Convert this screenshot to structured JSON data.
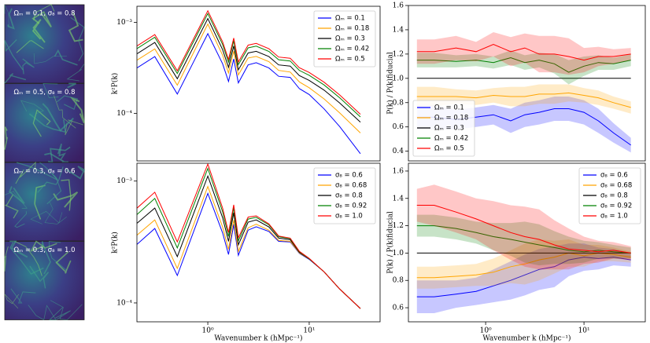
{
  "images": [
    {
      "label": "Ωₘ = 0.1, σ₈ = 0.8"
    },
    {
      "label": "Ωₘ = 0.5, σ₈ = 0.8"
    },
    {
      "label": "Ωₘ = 0.3, σ₈ = 0.6"
    },
    {
      "label": "Ωₘ = 0.3, σ₈ = 1.0"
    }
  ],
  "chart_data": [
    {
      "type": "line",
      "ylabel": "k²P(k)",
      "xscale": "log",
      "yscale": "log",
      "legend": "upper right",
      "xlim": [
        0.2,
        50
      ],
      "ylim": [
        3e-05,
        0.0015
      ],
      "yticks": [
        {
          "value": 0.001,
          "label": "10⁻³"
        },
        {
          "value": 0.0001,
          "label": "10⁻⁴"
        }
      ],
      "x": [
        0.2,
        0.3,
        0.5,
        1.0,
        1.4,
        1.6,
        1.8,
        2.0,
        2.5,
        3.0,
        4.0,
        5.0,
        6.5,
        8.0,
        10,
        14,
        20,
        32
      ],
      "series": [
        {
          "name": "Ωₘ = 0.1",
          "color": "#0000ff",
          "values": [
            0.000315,
            0.00042,
            0.000163,
            0.00075,
            0.00035,
            0.000224,
            0.000396,
            0.000216,
            0.00034,
            0.00036,
            0.000315,
            0.000255,
            0.000248,
            0.000187,
            0.000161,
            0.000112,
            7.15e-05,
            3.6e-05
          ]
        },
        {
          "name": "Ωₘ = 0.18",
          "color": "#ffa500",
          "values": [
            0.000383,
            0.00051,
            0.000204,
            0.000957,
            0.000435,
            0.000278,
            0.000484,
            0.000264,
            0.000405,
            0.000422,
            0.00037,
            0.000296,
            0.000284,
            0.000221,
            0.000191,
            0.000144,
            0.000101,
            6.08e-05
          ]
        },
        {
          "name": "Ωₘ = 0.3",
          "color": "#000000",
          "values": [
            0.00045,
            0.0006,
            0.00024,
            0.0011,
            0.0005,
            0.00032,
            0.00055,
            0.0003,
            0.00046,
            0.00048,
            0.00042,
            0.00034,
            0.00033,
            0.00026,
            0.00023,
            0.00018,
            0.00013,
            8e-05
          ]
        },
        {
          "name": "Ωₘ = 0.42",
          "color": "#008000",
          "values": [
            0.000513,
            0.000684,
            0.000274,
            0.00125,
            0.00057,
            0.000365,
            0.000627,
            0.000342,
            0.000524,
            0.000547,
            0.000479,
            0.000388,
            0.000376,
            0.000296,
            0.000262,
            0.000205,
            0.000148,
            9.12e-05
          ]
        },
        {
          "name": "Ωₘ = 0.5",
          "color": "#ff0000",
          "values": [
            0.000549,
            0.000732,
            0.000293,
            0.00134,
            0.00061,
            0.00039,
            0.000671,
            0.000366,
            0.000561,
            0.000586,
            0.000512,
            0.000415,
            0.000403,
            0.000317,
            0.000281,
            0.00022,
            0.000159,
            9.76e-05
          ]
        }
      ]
    },
    {
      "type": "line",
      "ylabel": "k²P(k)",
      "xlabel": "Wavenumber k (hMpc⁻¹)",
      "xscale": "log",
      "yscale": "log",
      "legend": "upper right",
      "xlim": [
        0.2,
        50
      ],
      "ylim": [
        7e-05,
        0.0014
      ],
      "xticks": [
        {
          "value": 1,
          "label": "10⁰"
        },
        {
          "value": 10,
          "label": "10¹"
        }
      ],
      "yticks": [
        {
          "value": 0.001,
          "label": "10⁻³"
        },
        {
          "value": 0.0001,
          "label": "10⁻⁴"
        }
      ],
      "x": [
        0.2,
        0.3,
        0.5,
        1.0,
        1.4,
        1.6,
        1.8,
        2.0,
        2.5,
        3.0,
        4.0,
        5.0,
        6.5,
        8.0,
        10,
        14,
        20,
        32
      ],
      "series": [
        {
          "name": "σ₈ = 0.6",
          "color": "#0000ff",
          "values": [
            0.000302,
            0.000408,
            0.000168,
            0.000792,
            0.000375,
            0.00025,
            0.00044,
            0.000246,
            0.000396,
            0.000422,
            0.000386,
            0.00032,
            0.000317,
            0.000255,
            0.000228,
            0.00018,
            0.00013,
            9e-05
          ]
        },
        {
          "name": "σ₈ = 0.68",
          "color": "#ffa500",
          "values": [
            0.00036,
            0.00048,
            0.000192,
            0.000902,
            0.00042,
            0.000275,
            0.000479,
            0.000264,
            0.000414,
            0.000442,
            0.000395,
            0.000326,
            0.00032,
            0.000257,
            0.00023,
            0.00018,
            0.00013,
            9e-05
          ]
        },
        {
          "name": "σ₈ = 0.8",
          "color": "#000000",
          "values": [
            0.00045,
            0.0006,
            0.00024,
            0.0011,
            0.0005,
            0.00032,
            0.00055,
            0.0003,
            0.00046,
            0.00048,
            0.00042,
            0.00034,
            0.00033,
            0.00026,
            0.00023,
            0.00018,
            0.00013,
            9e-05
          ]
        },
        {
          "name": "σ₈ = 0.92",
          "color": "#008000",
          "values": [
            0.000531,
            0.00072,
            0.000283,
            0.00127,
            0.00056,
            0.000352,
            0.000605,
            0.000324,
            0.000488,
            0.000504,
            0.000437,
            0.00035,
            0.000337,
            0.000263,
            0.00023,
            0.00018,
            0.00013,
            9e-05
          ]
        },
        {
          "name": "σ₈ = 1.0",
          "color": "#ff0000",
          "values": [
            0.000599,
            0.00081,
            0.000317,
            0.00138,
            0.0006,
            0.000378,
            0.000638,
            0.000342,
            0.000506,
            0.000518,
            0.000445,
            0.000354,
            0.00034,
            0.000265,
            0.000232,
            0.00018,
            0.00013,
            9e-05
          ]
        }
      ]
    },
    {
      "type": "line",
      "ylabel": "P(k) / P(k)fiducial",
      "xscale": "log",
      "legend": "lower left",
      "xlim": [
        0.164,
        42
      ],
      "ylim": [
        0.32,
        1.6
      ],
      "yticks": [
        0.4,
        0.6,
        0.8,
        {
          "value": 1,
          "label": "1.0"
        },
        1.2,
        1.4,
        1.6
      ],
      "x": [
        0.2,
        0.3,
        0.5,
        0.8,
        1.2,
        1.8,
        2.5,
        3.5,
        5,
        7,
        10,
        14,
        20,
        30
      ],
      "series": [
        {
          "name": "Ωₘ = 0.1",
          "color": "#0000ff",
          "values": [
            0.68,
            0.68,
            0.66,
            0.68,
            0.7,
            0.65,
            0.7,
            0.72,
            0.75,
            0.75,
            0.72,
            0.65,
            0.55,
            0.45
          ],
          "errors": [
            0.1,
            0.1,
            0.08,
            0.08,
            0.08,
            0.1,
            0.1,
            0.1,
            0.1,
            0.1,
            0.1,
            0.1,
            0.08,
            0.06
          ]
        },
        {
          "name": "Ωₘ = 0.18",
          "color": "#ffa500",
          "values": [
            0.85,
            0.85,
            0.85,
            0.84,
            0.86,
            0.85,
            0.85,
            0.87,
            0.87,
            0.88,
            0.86,
            0.84,
            0.8,
            0.76
          ],
          "errors": [
            0.08,
            0.08,
            0.06,
            0.06,
            0.06,
            0.08,
            0.08,
            0.08,
            0.08,
            0.07,
            0.06,
            0.06,
            0.05,
            0.05
          ]
        },
        {
          "name": "Ωₘ = 0.3",
          "color": "#000000",
          "values": [
            1,
            1,
            1,
            1,
            1,
            1,
            1,
            1,
            1,
            1,
            1,
            1,
            1,
            1
          ]
        },
        {
          "name": "Ωₘ = 0.42",
          "color": "#008000",
          "values": [
            1.15,
            1.15,
            1.14,
            1.15,
            1.13,
            1.17,
            1.13,
            1.15,
            1.12,
            1.05,
            1.1,
            1.13,
            1.12,
            1.15
          ],
          "errors": [
            0.06,
            0.06,
            0.05,
            0.05,
            0.05,
            0.06,
            0.06,
            0.06,
            0.08,
            0.1,
            0.08,
            0.06,
            0.05,
            0.05
          ]
        },
        {
          "name": "Ωₘ = 0.5",
          "color": "#ff0000",
          "values": [
            1.22,
            1.22,
            1.25,
            1.22,
            1.28,
            1.22,
            1.25,
            1.2,
            1.2,
            1.18,
            1.15,
            1.18,
            1.18,
            1.2
          ],
          "errors": [
            0.1,
            0.1,
            0.1,
            0.08,
            0.1,
            0.12,
            0.12,
            0.15,
            0.15,
            0.15,
            0.1,
            0.08,
            0.06,
            0.05
          ]
        }
      ]
    },
    {
      "type": "line",
      "ylabel": "P(k) / P(k)fiducial",
      "xlabel": "Wavenumber k (hMpc⁻¹)",
      "xscale": "log",
      "legend": "upper right",
      "xlim": [
        0.164,
        42
      ],
      "ylim": [
        0.497,
        1.657
      ],
      "xticks": [
        {
          "value": 1,
          "label": "10⁰"
        },
        {
          "value": 10,
          "label": "10¹"
        }
      ],
      "yticks": [
        0.6,
        0.8,
        {
          "value": 1,
          "label": "1.0"
        },
        1.2,
        1.4,
        1.6
      ],
      "x": [
        0.2,
        0.3,
        0.5,
        0.8,
        1.2,
        1.8,
        2.5,
        3.5,
        5,
        7,
        10,
        14,
        20,
        30
      ],
      "series": [
        {
          "name": "σ₈ = 0.6",
          "color": "#0000ff",
          "values": [
            0.68,
            0.68,
            0.7,
            0.72,
            0.76,
            0.8,
            0.84,
            0.88,
            0.9,
            0.95,
            0.97,
            0.96,
            0.97,
            0.95
          ],
          "errors": [
            0.12,
            0.12,
            0.1,
            0.1,
            0.12,
            0.14,
            0.15,
            0.15,
            0.15,
            0.12,
            0.1,
            0.08,
            0.06,
            0.05
          ]
        },
        {
          "name": "σ₈ = 0.68",
          "color": "#ffa500",
          "values": [
            0.82,
            0.82,
            0.83,
            0.84,
            0.86,
            0.9,
            0.92,
            0.95,
            0.97,
            1.0,
            0.98,
            1.0,
            0.99,
            0.97
          ],
          "errors": [
            0.08,
            0.08,
            0.08,
            0.08,
            0.1,
            0.12,
            0.15,
            0.15,
            0.12,
            0.1,
            0.08,
            0.06,
            0.05,
            0.04
          ]
        },
        {
          "name": "σ₈ = 0.8",
          "color": "#000000",
          "values": [
            1,
            1,
            1,
            1,
            1,
            1,
            1,
            1,
            1,
            1,
            1,
            1,
            1,
            1
          ]
        },
        {
          "name": "σ₈ = 0.92",
          "color": "#008000",
          "values": [
            1.2,
            1.2,
            1.18,
            1.15,
            1.12,
            1.1,
            1.08,
            1.06,
            1.04,
            1.02,
            1.01,
            1.02,
            1.01,
            1.0
          ],
          "errors": [
            0.08,
            0.08,
            0.08,
            0.08,
            0.1,
            0.12,
            0.15,
            0.15,
            0.12,
            0.1,
            0.08,
            0.06,
            0.05,
            0.04
          ]
        },
        {
          "name": "σ₈ = 1.0",
          "color": "#ff0000",
          "values": [
            1.35,
            1.35,
            1.3,
            1.25,
            1.2,
            1.15,
            1.12,
            1.1,
            1.06,
            1.03,
            1.02,
            1.01,
            1.02,
            1.0
          ],
          "errors": [
            0.12,
            0.15,
            0.15,
            0.15,
            0.18,
            0.2,
            0.22,
            0.22,
            0.18,
            0.15,
            0.1,
            0.08,
            0.06,
            0.05
          ]
        }
      ]
    }
  ]
}
